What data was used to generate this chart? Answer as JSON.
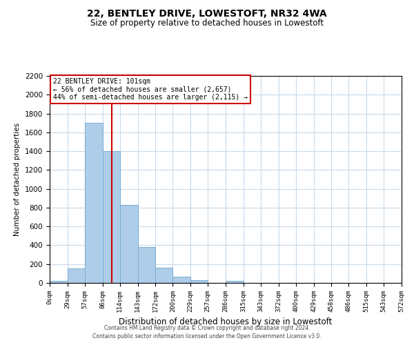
{
  "title": "22, BENTLEY DRIVE, LOWESTOFT, NR32 4WA",
  "subtitle": "Size of property relative to detached houses in Lowestoft",
  "xlabel": "Distribution of detached houses by size in Lowestoft",
  "ylabel": "Number of detached properties",
  "bar_color": "#aecde8",
  "bar_edge_color": "#7aadd4",
  "background_color": "#ffffff",
  "grid_color": "#c8daea",
  "bin_edges": [
    0,
    29,
    57,
    86,
    114,
    143,
    172,
    200,
    229,
    257,
    286,
    315,
    343,
    372,
    400,
    429,
    458,
    486,
    515,
    543,
    572
  ],
  "bin_labels": [
    "0sqm",
    "29sqm",
    "57sqm",
    "86sqm",
    "114sqm",
    "143sqm",
    "172sqm",
    "200sqm",
    "229sqm",
    "257sqm",
    "286sqm",
    "315sqm",
    "343sqm",
    "372sqm",
    "400sqm",
    "429sqm",
    "458sqm",
    "486sqm",
    "515sqm",
    "543sqm",
    "572sqm"
  ],
  "bar_heights": [
    20,
    155,
    1700,
    1400,
    830,
    385,
    165,
    65,
    30,
    0,
    25,
    0,
    0,
    0,
    0,
    0,
    0,
    0,
    0,
    0
  ],
  "ylim": [
    0,
    2200
  ],
  "yticks": [
    0,
    200,
    400,
    600,
    800,
    1000,
    1200,
    1400,
    1600,
    1800,
    2000,
    2200
  ],
  "vline_x": 101,
  "vline_color": "#cc0000",
  "annotation_title": "22 BENTLEY DRIVE: 101sqm",
  "annotation_line1": "← 56% of detached houses are smaller (2,657)",
  "annotation_line2": "44% of semi-detached houses are larger (2,115) →",
  "annotation_box_color": "#ffffff",
  "annotation_box_edge": "#cc0000",
  "footer_line1": "Contains HM Land Registry data © Crown copyright and database right 2024.",
  "footer_line2": "Contains public sector information licensed under the Open Government Licence v3.0."
}
